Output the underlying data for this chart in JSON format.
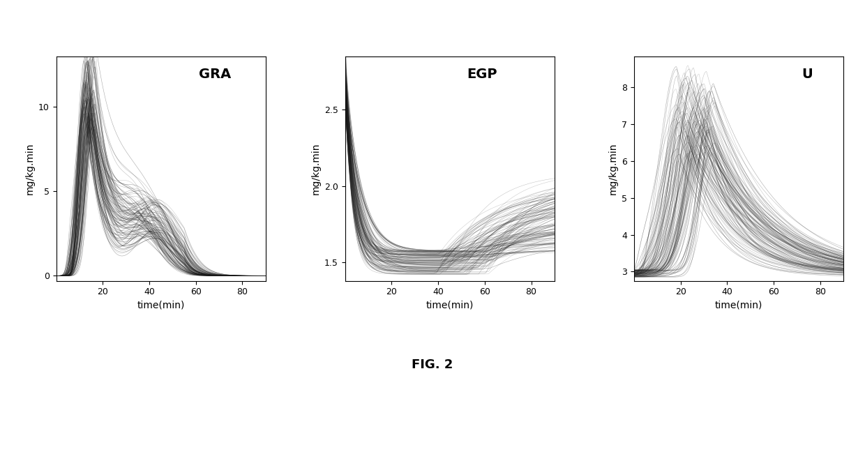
{
  "title": "FIG. 2",
  "panels": [
    {
      "label": "GRA",
      "ylabel": "mg/kg.min",
      "xlabel": "time(min)",
      "xlim": [
        0,
        90
      ],
      "ylim": [
        -0.3,
        13
      ],
      "yticks": [
        0,
        5,
        10
      ],
      "xticks": [
        20,
        40,
        60,
        80
      ]
    },
    {
      "label": "EGP",
      "ylabel": "mg/kg.min",
      "xlabel": "time(min)",
      "xlim": [
        0,
        90
      ],
      "ylim": [
        1.38,
        2.85
      ],
      "yticks": [
        1.5,
        2.0,
        2.5
      ],
      "xticks": [
        20,
        40,
        60,
        80
      ]
    },
    {
      "label": "U",
      "ylabel": "mg/kg.min",
      "xlabel": "time(min)",
      "xlim": [
        0,
        90
      ],
      "ylim": [
        2.75,
        8.85
      ],
      "yticks": [
        3,
        4,
        5,
        6,
        7,
        8
      ],
      "xticks": [
        20,
        40,
        60,
        80
      ]
    }
  ],
  "n_curves": 120,
  "line_color": "#1a1a1a",
  "line_alpha": 0.25,
  "line_width": 0.4,
  "background_color": "#ffffff",
  "fig_label_fontsize": 13,
  "axis_label_fontsize": 10,
  "panel_label_fontsize": 14,
  "tick_fontsize": 9
}
